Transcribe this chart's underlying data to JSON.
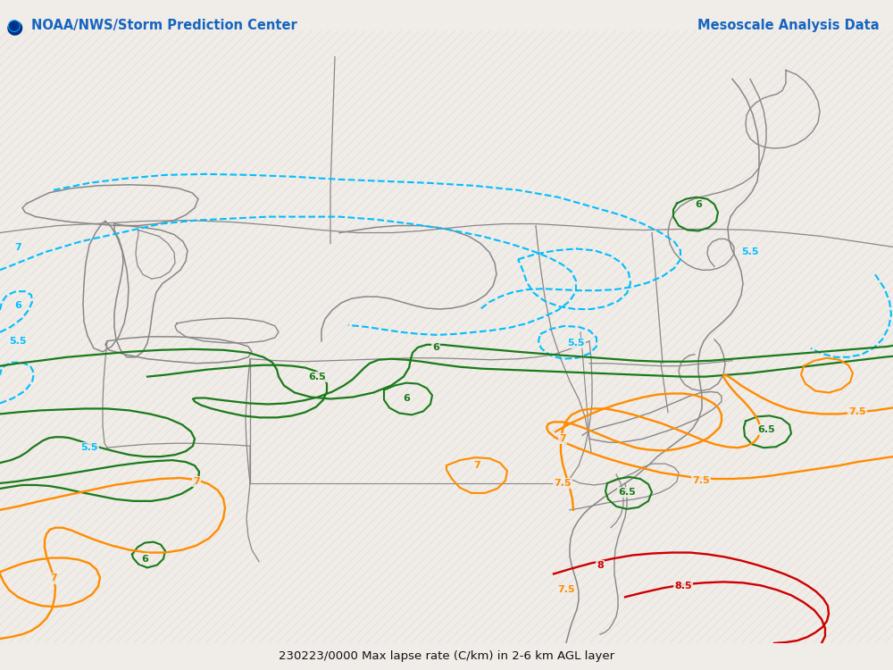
{
  "title_left": "NOAA/NWS/Storm Prediction Center",
  "title_right": "Mesoscale Analysis Data",
  "bottom_label": "230223/0000 Max lapse rate (C/km) in 2-6 km AGL layer",
  "title_color": "#1565C0",
  "background_color": "#f0ece8",
  "hatch_color": "#e0d8d0",
  "figsize": [
    10,
    7.5
  ],
  "dpi": 100,
  "cyan_color": "#00BFFF",
  "green_color": "#1a7a1a",
  "orange_color": "#FF8C00",
  "red_color": "#CC0000",
  "map_line_color": "#888888"
}
